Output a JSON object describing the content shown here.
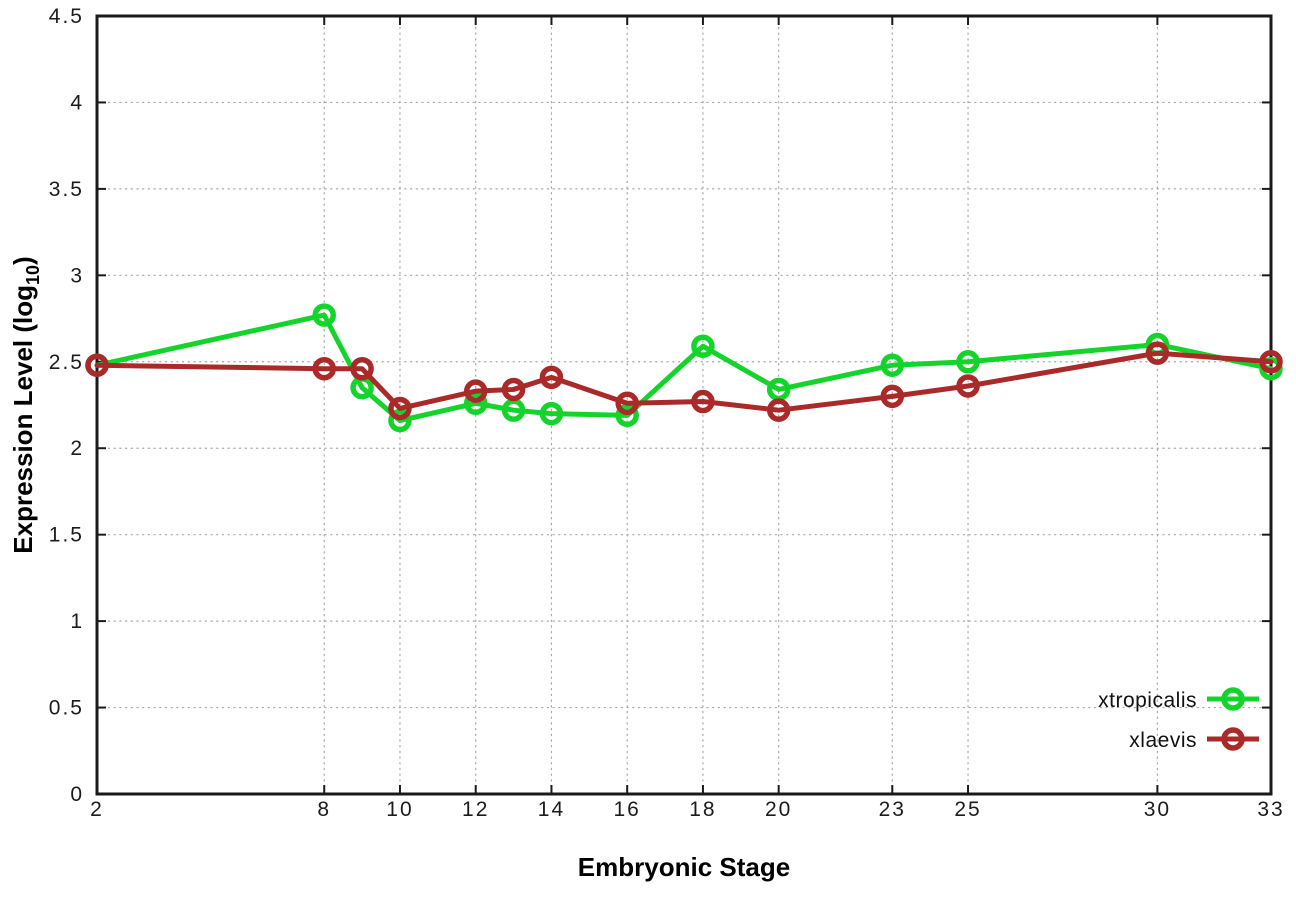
{
  "chart_data": {
    "type": "line",
    "title": "",
    "xlabel": "Embryonic Stage",
    "ylabel": "Expression Level (log10)",
    "ylabel_rich": {
      "prefix": "Expression Level (log",
      "sub": "10",
      "suffix": ")"
    },
    "xlim": [
      2,
      33
    ],
    "ylim": [
      0,
      4.5
    ],
    "grid": true,
    "legend_position": "bottom-right-inside",
    "x_tick_labels": [
      "2",
      "8",
      "10",
      "12",
      "14",
      "16",
      "18",
      "20",
      "23",
      "25",
      "30",
      "33"
    ],
    "x_ticks": [
      2,
      8,
      10,
      12,
      14,
      16,
      18,
      20,
      23,
      25,
      30,
      33
    ],
    "y_tick_labels": [
      "0",
      "0.5",
      "1",
      "1.5",
      "2",
      "2.5",
      "3",
      "3.5",
      "4",
      "4.5"
    ],
    "y_ticks": [
      0,
      0.5,
      1,
      1.5,
      2,
      2.5,
      3,
      3.5,
      4,
      4.5
    ],
    "x": [
      2,
      8,
      9,
      10,
      12,
      13,
      14,
      16,
      18,
      20,
      23,
      25,
      30,
      33
    ],
    "series": [
      {
        "name": "xtropicalis",
        "color": "#14d42c",
        "marker": "open-circle",
        "values": [
          2.48,
          2.77,
          2.35,
          2.16,
          2.26,
          2.22,
          2.2,
          2.19,
          2.59,
          2.34,
          2.48,
          2.5,
          2.6,
          2.46
        ]
      },
      {
        "name": "xlaevis",
        "color": "#aa2a2a",
        "marker": "open-circle",
        "values": [
          2.48,
          2.46,
          2.46,
          2.23,
          2.33,
          2.34,
          2.41,
          2.26,
          2.27,
          2.22,
          2.3,
          2.36,
          2.55,
          2.5
        ]
      }
    ]
  }
}
